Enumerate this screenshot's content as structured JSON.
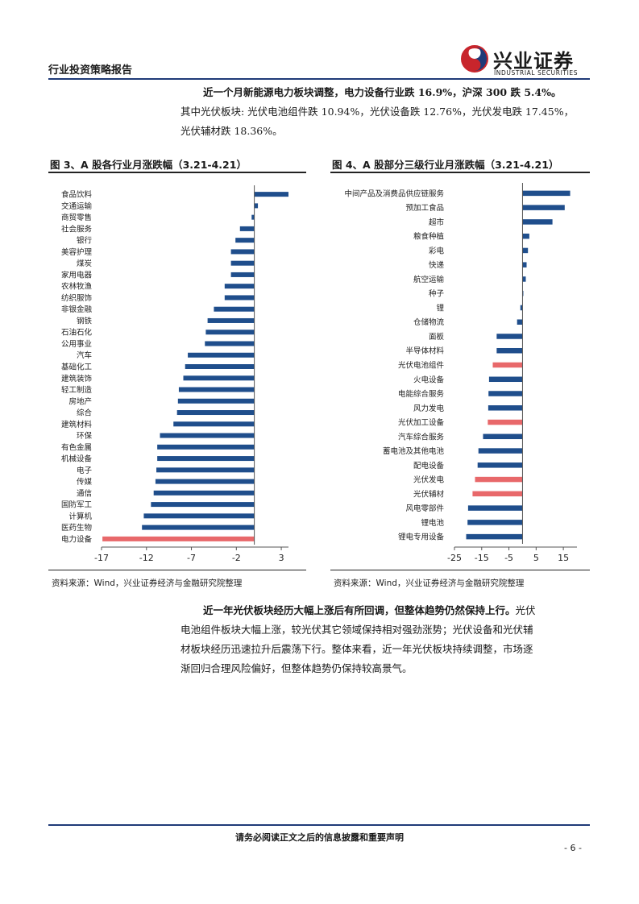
{
  "header": {
    "title": "行业投资策略报告",
    "logo_cn": "兴业证券",
    "logo_en": "INDUSTRIAL SECURITIES",
    "colors": {
      "rule": "#1f3a78",
      "logo_red": "#c8252c",
      "logo_blue": "#1f3a78"
    }
  },
  "intro": {
    "lead": "近一个月新能源电力板块调整，电力设备行业跌 16.9%，沪深 300 跌 5.4%。",
    "line2": "其中光伏板块: 光伏电池组件跌 10.94%，光伏设备跌 12.76%，光伏发电跌 17.45%，",
    "line3": "光伏辅材跌 18.36%。"
  },
  "figures": {
    "fig3_title": "图 3、A 股各行业月涨跌幅（3.21-4.21）",
    "fig4_title": "图 4、A 股部分三级行业月涨跌幅（3.21-4.21）",
    "source": "资料来源：Wind，兴业证券经济与金融研究院整理"
  },
  "chart_data": [
    {
      "type": "bar",
      "orientation": "horizontal",
      "categories": [
        "食品饮料",
        "交通运输",
        "商贸零售",
        "社会服务",
        "银行",
        "美容护理",
        "煤炭",
        "家用电器",
        "农林牧渔",
        "纺织服饰",
        "非银金融",
        "钢铁",
        "石油石化",
        "公用事业",
        "汽车",
        "基础化工",
        "建筑装饰",
        "轻工制造",
        "房地产",
        "综合",
        "建筑材料",
        "环保",
        "有色金属",
        "机械设备",
        "电子",
        "传媒",
        "通信",
        "国防军工",
        "计算机",
        "医药生物",
        "电力设备"
      ],
      "values": [
        3.8,
        0.4,
        -0.3,
        -1.6,
        -2.1,
        -2.6,
        -2.6,
        -2.6,
        -3.3,
        -3.3,
        -4.5,
        -5.2,
        -5.4,
        -5.5,
        -7.4,
        -7.7,
        -7.9,
        -8.4,
        -8.5,
        -8.6,
        -9.0,
        -10.5,
        -10.8,
        -10.8,
        -10.9,
        -11.0,
        -11.2,
        -11.5,
        -12.3,
        -12.5,
        -16.9
      ],
      "highlight": [
        "电力设备"
      ],
      "xticks": [
        -17,
        -12,
        -7,
        -2,
        3
      ],
      "xlim": [
        -17,
        3.8
      ],
      "colors": {
        "normal": "#1f4e8c",
        "highlight": "#e8686a"
      },
      "grid": false,
      "legend": "none",
      "title": "",
      "xlabel": "",
      "ylabel": ""
    },
    {
      "type": "bar",
      "orientation": "horizontal",
      "categories": [
        "中间产品及消费品供应链服务",
        "预加工食品",
        "超市",
        "粮食种植",
        "彩电",
        "快递",
        "航空运输",
        "种子",
        "锂",
        "仓储物流",
        "面板",
        "半导体材料",
        "光伏电池组件",
        "火电设备",
        "电能综合服务",
        "风力发电",
        "光伏加工设备",
        "汽车综合服务",
        "蓄电池及其他电池",
        "配电设备",
        "光伏发电",
        "光伏辅材",
        "风电零部件",
        "锂电池",
        "锂电专用设备"
      ],
      "values": [
        17.5,
        15.5,
        11,
        2.5,
        2,
        1.5,
        1.2,
        0.3,
        -0.8,
        -2,
        -9.5,
        -9.5,
        -10.94,
        -12.3,
        -12.5,
        -12.6,
        -12.76,
        -14.5,
        -16.2,
        -16.5,
        -17.45,
        -18.36,
        -20,
        -20.2,
        -20.7
      ],
      "highlight": [
        "光伏电池组件",
        "光伏加工设备",
        "光伏发电",
        "光伏辅材"
      ],
      "xticks": [
        -25,
        -15,
        -5,
        5,
        15
      ],
      "xlim": [
        -25,
        20
      ],
      "colors": {
        "normal": "#1f4e8c",
        "highlight": "#e8686a"
      },
      "grid": false,
      "legend": "none",
      "title": "",
      "xlabel": "",
      "ylabel": ""
    }
  ],
  "conclusion": {
    "lead": "近一年光伏板块经历大幅上涨后有所回调，但整体趋势仍然保持上行。",
    "line1_rest": "光伏",
    "line2": "电池组件板块大幅上涨，较光伏其它领域保持相对强劲涨势；光伏设备和光伏辅",
    "line3": "材板块经历迅速拉升后震荡下行。整体来看，近一年光伏板块持续调整，市场逐",
    "line4": "渐回归合理风险偏好，但整体趋势仍保持较高景气。"
  },
  "footer": {
    "disclaimer": "请务必阅读正文之后的信息披露和重要声明",
    "page": "- 6 -"
  }
}
